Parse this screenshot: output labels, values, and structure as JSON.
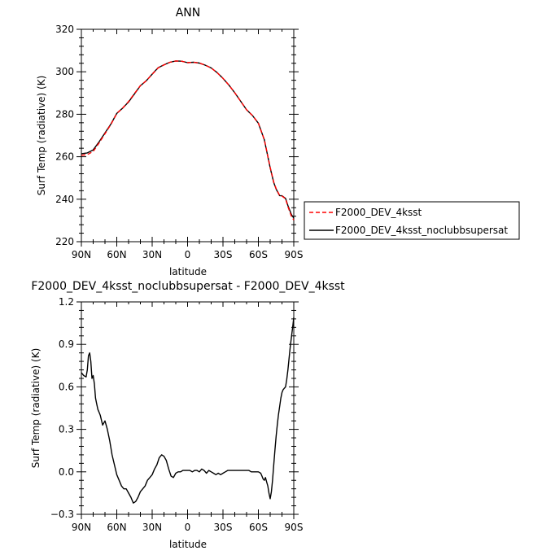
{
  "chart_data": [
    {
      "type": "line",
      "title": "ANN",
      "xlabel": "latitude",
      "ylabel": "Surf Temp (radiative) (K)",
      "x_tick_labels": [
        "90N",
        "60N",
        "30N",
        "0",
        "30S",
        "60S",
        "90S"
      ],
      "x_tick_values": [
        90,
        60,
        30,
        0,
        -30,
        -60,
        -90
      ],
      "xlim": [
        90,
        -90
      ],
      "ylim": [
        220,
        320
      ],
      "y_ticks": [
        220,
        240,
        260,
        280,
        300,
        320
      ],
      "y_tick_labels": [
        "220",
        "240",
        "260",
        "280",
        "300",
        "320"
      ],
      "legend_position": "right",
      "series": [
        {
          "name": "F2000_DEV_4ksst",
          "color": "#ff0000",
          "dash": "dashed",
          "x": [
            90,
            85,
            80,
            75,
            70,
            65,
            60,
            55,
            50,
            45,
            40,
            35,
            30,
            25,
            20,
            15,
            10,
            5,
            0,
            -5,
            -10,
            -15,
            -20,
            -25,
            -30,
            -35,
            -40,
            -45,
            -50,
            -55,
            -60,
            -65,
            -67,
            -70,
            -73,
            -75,
            -78,
            -80,
            -83,
            -85,
            -88,
            -90
          ],
          "y": [
            260.7,
            261.0,
            262.5,
            266.5,
            270.8,
            275.2,
            280.4,
            283.0,
            286.0,
            289.8,
            293.5,
            295.8,
            298.8,
            301.8,
            303.2,
            304.5,
            305.1,
            305.0,
            304.3,
            304.5,
            304.1,
            303.1,
            301.8,
            299.6,
            296.9,
            293.7,
            290.1,
            286.1,
            282.1,
            279.4,
            275.8,
            268.0,
            263.0,
            255.0,
            248.0,
            245.0,
            241.8,
            241.5,
            240.2,
            236.5,
            232.0,
            230.2
          ]
        },
        {
          "name": "F2000_DEV_4ksst_noclubbsupersat",
          "color": "#000000",
          "dash": "solid",
          "x": [
            90,
            85,
            80,
            75,
            70,
            65,
            60,
            55,
            50,
            45,
            40,
            35,
            30,
            25,
            20,
            15,
            10,
            5,
            0,
            -5,
            -10,
            -15,
            -20,
            -25,
            -30,
            -35,
            -40,
            -45,
            -50,
            -55,
            -60,
            -65,
            -67,
            -70,
            -73,
            -75,
            -78,
            -80,
            -83,
            -85,
            -88,
            -90
          ],
          "y": [
            261.4,
            261.8,
            263.2,
            267.0,
            271.2,
            275.4,
            280.4,
            282.9,
            285.8,
            289.6,
            293.4,
            295.8,
            298.9,
            301.9,
            303.3,
            304.5,
            305.1,
            305.0,
            304.3,
            304.5,
            304.1,
            303.1,
            301.8,
            299.6,
            296.9,
            293.7,
            290.1,
            286.1,
            282.1,
            279.4,
            275.8,
            268.0,
            262.9,
            254.8,
            247.8,
            244.8,
            241.7,
            241.6,
            240.4,
            237.0,
            232.8,
            231.1
          ]
        }
      ]
    },
    {
      "type": "line",
      "title": "F2000_DEV_4ksst_noclubbsupersat - F2000_DEV_4ksst",
      "xlabel": "latitude",
      "ylabel": "Surf Temp (radiative) (K)",
      "x_tick_labels": [
        "90N",
        "60N",
        "30N",
        "0",
        "30S",
        "60S",
        "90S"
      ],
      "x_tick_values": [
        90,
        60,
        30,
        0,
        -30,
        -60,
        -90
      ],
      "xlim": [
        90,
        -90
      ],
      "ylim": [
        -0.3,
        1.2
      ],
      "y_ticks": [
        -0.3,
        0.0,
        0.3,
        0.6,
        0.9,
        1.2
      ],
      "y_tick_labels": [
        "−0.3",
        "0.0",
        "0.3",
        "0.6",
        "0.9",
        "1.2"
      ],
      "series": [
        {
          "name": "",
          "color": "#000000",
          "dash": "solid",
          "x": [
            90,
            88,
            86,
            85,
            84,
            83,
            82,
            81,
            80,
            79,
            78,
            77,
            76,
            75,
            74,
            72,
            70,
            68,
            66,
            64,
            62,
            60,
            58,
            56,
            54,
            52,
            50,
            48,
            46,
            44,
            42,
            40,
            38,
            36,
            34,
            32,
            30,
            28,
            26,
            24,
            22,
            20,
            18,
            16,
            14,
            12,
            10,
            8,
            6,
            4,
            2,
            0,
            -2,
            -4,
            -6,
            -8,
            -10,
            -12,
            -14,
            -16,
            -18,
            -20,
            -22,
            -24,
            -26,
            -28,
            -30,
            -32,
            -34,
            -36,
            -38,
            -40,
            -42,
            -44,
            -46,
            -48,
            -50,
            -52,
            -54,
            -56,
            -58,
            -60,
            -62,
            -63,
            -64,
            -65,
            -66,
            -67,
            -68,
            -69,
            -70,
            -71,
            -72,
            -73,
            -74,
            -75,
            -76,
            -77,
            -78,
            -79,
            -80,
            -81,
            -82,
            -83,
            -84,
            -85,
            -86,
            -87,
            -88,
            -89,
            -90
          ],
          "y": [
            0.7,
            0.68,
            0.67,
            0.72,
            0.82,
            0.84,
            0.78,
            0.66,
            0.68,
            0.62,
            0.52,
            0.48,
            0.44,
            0.42,
            0.4,
            0.33,
            0.36,
            0.3,
            0.22,
            0.12,
            0.05,
            -0.02,
            -0.06,
            -0.1,
            -0.12,
            -0.12,
            -0.15,
            -0.18,
            -0.22,
            -0.21,
            -0.18,
            -0.14,
            -0.12,
            -0.1,
            -0.06,
            -0.04,
            -0.02,
            0.02,
            0.05,
            0.1,
            0.12,
            0.11,
            0.08,
            0.02,
            -0.03,
            -0.04,
            -0.01,
            0.0,
            0.0,
            0.01,
            0.01,
            0.01,
            0.01,
            0.0,
            0.01,
            0.01,
            0.0,
            0.02,
            0.01,
            -0.01,
            0.01,
            0.0,
            -0.01,
            -0.02,
            -0.01,
            -0.02,
            -0.01,
            0.0,
            0.01,
            0.01,
            0.01,
            0.01,
            0.01,
            0.01,
            0.01,
            0.01,
            0.01,
            0.01,
            0.0,
            0.0,
            0.0,
            0.0,
            -0.01,
            -0.03,
            -0.05,
            -0.06,
            -0.04,
            -0.07,
            -0.1,
            -0.15,
            -0.19,
            -0.14,
            -0.06,
            0.05,
            0.15,
            0.25,
            0.33,
            0.4,
            0.46,
            0.52,
            0.56,
            0.58,
            0.59,
            0.6,
            0.65,
            0.72,
            0.8,
            0.88,
            0.95,
            1.02,
            1.09
          ]
        }
      ]
    }
  ]
}
